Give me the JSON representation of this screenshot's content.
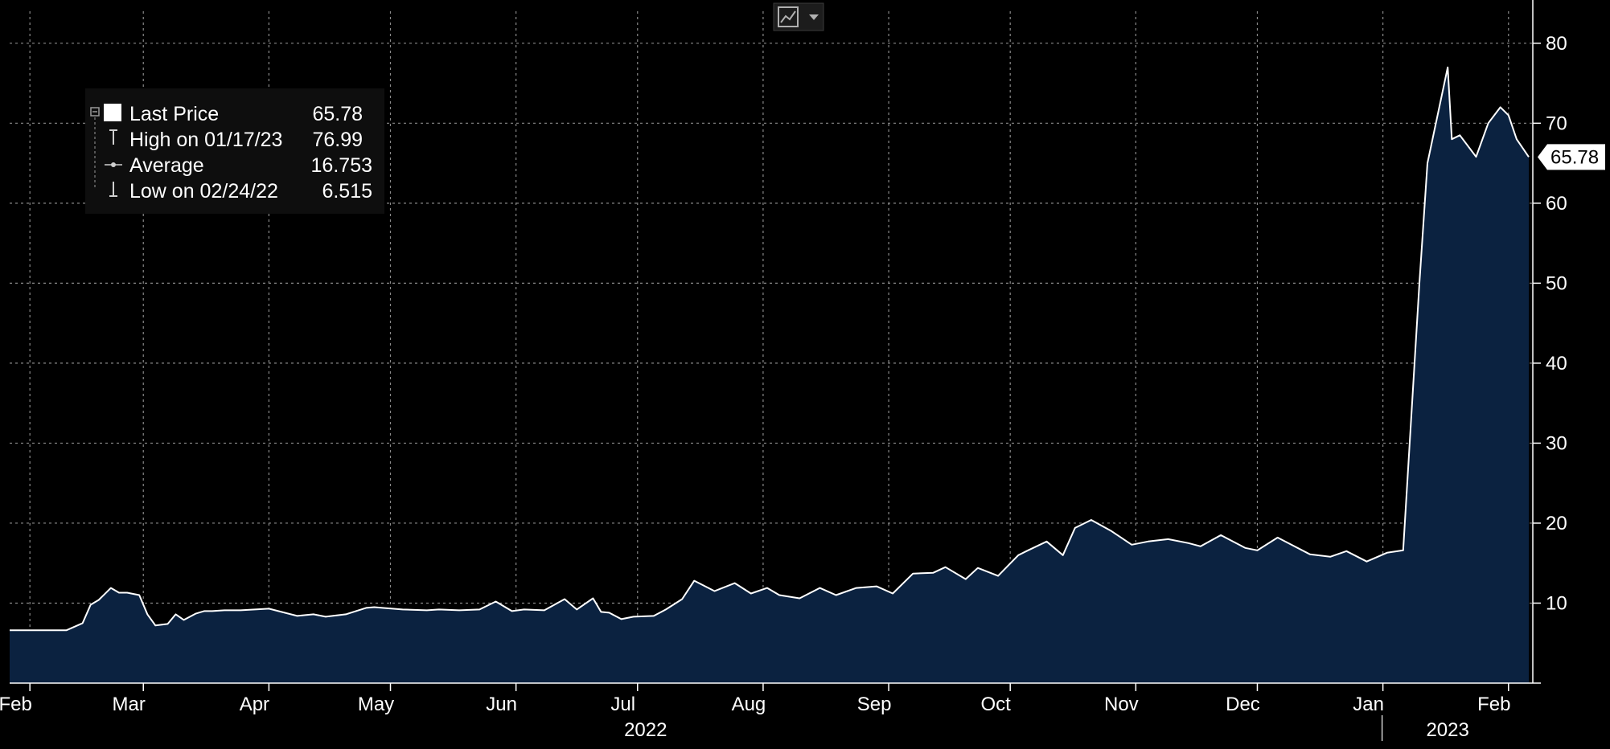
{
  "toolbar": {
    "chart_type_icon": "line-chart-icon",
    "dropdown_icon": "chevron-down-icon"
  },
  "legend": {
    "entries": [
      {
        "label": "Last Price",
        "value": "65.78",
        "icon": "filled-square-icon"
      },
      {
        "label": "High on 01/17/23",
        "value": "76.99",
        "icon": "high-marker-icon"
      },
      {
        "label": "Average",
        "value": "16.753",
        "icon": "average-marker-icon"
      },
      {
        "label": "Low on 02/24/22",
        "value": "6.515",
        "icon": "low-marker-icon"
      }
    ]
  },
  "last_price_label": "65.78",
  "colors": {
    "background": "#000000",
    "area_fill": "#0b2240",
    "line": "#ffffff",
    "grid": "#8a8a8a"
  },
  "chart_data": {
    "type": "area",
    "title": "",
    "xlabel": "",
    "ylabel": "",
    "ylim": [
      0,
      84
    ],
    "xlim": [
      "2022-01-27",
      "2023-02-07"
    ],
    "grid": true,
    "legend_position": "top-left",
    "y_ticks": [
      10,
      20,
      30,
      40,
      50,
      60,
      70,
      80
    ],
    "x_month_ticks": [
      {
        "label": "Feb",
        "date": "2022-02-01"
      },
      {
        "label": "Mar",
        "date": "2022-03-01"
      },
      {
        "label": "Apr",
        "date": "2022-04-01"
      },
      {
        "label": "May",
        "date": "2022-05-01"
      },
      {
        "label": "Jun",
        "date": "2022-06-01"
      },
      {
        "label": "Jul",
        "date": "2022-07-01"
      },
      {
        "label": "Aug",
        "date": "2022-08-01"
      },
      {
        "label": "Sep",
        "date": "2022-09-01"
      },
      {
        "label": "Oct",
        "date": "2022-10-01"
      },
      {
        "label": "Nov",
        "date": "2022-11-01"
      },
      {
        "label": "Dec",
        "date": "2022-12-01"
      },
      {
        "label": "Jan",
        "date": "2023-01-01"
      },
      {
        "label": "Feb",
        "date": "2023-02-01"
      }
    ],
    "x_year_labels": [
      {
        "label": "2022",
        "date": "2022-07-01"
      },
      {
        "label": "2023",
        "date": "2023-01-15"
      }
    ],
    "year_divider_date": "2022-12-31",
    "series": [
      {
        "name": "Last Price",
        "x": [
          "2022-01-27",
          "2022-02-03",
          "2022-02-10",
          "2022-02-14",
          "2022-02-16",
          "2022-02-18",
          "2022-02-21",
          "2022-02-23",
          "2022-02-25",
          "2022-02-28",
          "2022-03-02",
          "2022-03-04",
          "2022-03-07",
          "2022-03-09",
          "2022-03-11",
          "2022-03-14",
          "2022-03-16",
          "2022-03-18",
          "2022-03-21",
          "2022-03-25",
          "2022-04-01",
          "2022-04-08",
          "2022-04-12",
          "2022-04-15",
          "2022-04-20",
          "2022-04-25",
          "2022-04-27",
          "2022-04-29",
          "2022-05-04",
          "2022-05-10",
          "2022-05-13",
          "2022-05-18",
          "2022-05-23",
          "2022-05-27",
          "2022-05-31",
          "2022-06-03",
          "2022-06-08",
          "2022-06-13",
          "2022-06-16",
          "2022-06-20",
          "2022-06-22",
          "2022-06-24",
          "2022-06-27",
          "2022-06-30",
          "2022-07-05",
          "2022-07-08",
          "2022-07-12",
          "2022-07-15",
          "2022-07-20",
          "2022-07-25",
          "2022-07-29",
          "2022-08-02",
          "2022-08-05",
          "2022-08-10",
          "2022-08-15",
          "2022-08-19",
          "2022-08-24",
          "2022-08-29",
          "2022-09-02",
          "2022-09-07",
          "2022-09-12",
          "2022-09-15",
          "2022-09-20",
          "2022-09-23",
          "2022-09-28",
          "2022-10-03",
          "2022-10-05",
          "2022-10-10",
          "2022-10-14",
          "2022-10-17",
          "2022-10-21",
          "2022-10-26",
          "2022-10-31",
          "2022-11-04",
          "2022-11-09",
          "2022-11-14",
          "2022-11-17",
          "2022-11-22",
          "2022-11-28",
          "2022-12-01",
          "2022-12-06",
          "2022-12-09",
          "2022-12-14",
          "2022-12-19",
          "2022-12-23",
          "2022-12-28",
          "2023-01-02",
          "2023-01-06",
          "2023-01-10",
          "2023-01-12",
          "2023-01-17",
          "2023-01-18",
          "2023-01-20",
          "2023-01-24",
          "2023-01-27",
          "2023-01-30",
          "2023-02-01",
          "2023-02-03",
          "2023-02-06"
        ],
        "values": [
          6.6,
          6.6,
          6.6,
          7.5,
          9.8,
          10.4,
          11.9,
          11.3,
          11.3,
          11.0,
          8.6,
          7.2,
          7.4,
          8.6,
          7.9,
          8.7,
          9.0,
          9.0,
          9.1,
          9.1,
          9.3,
          8.4,
          8.6,
          8.3,
          8.6,
          9.4,
          9.5,
          9.4,
          9.2,
          9.1,
          9.2,
          9.1,
          9.2,
          10.2,
          9.0,
          9.2,
          9.1,
          10.5,
          9.2,
          10.6,
          8.9,
          8.8,
          8.0,
          8.3,
          8.4,
          9.2,
          10.5,
          12.8,
          11.5,
          12.5,
          11.2,
          11.9,
          11.0,
          10.6,
          11.9,
          11.0,
          11.9,
          12.1,
          11.2,
          13.7,
          13.8,
          14.5,
          13.0,
          14.4,
          13.4,
          16.0,
          16.5,
          17.7,
          16.0,
          19.4,
          20.4,
          19.0,
          17.3,
          17.7,
          18.0,
          17.5,
          17.1,
          18.5,
          16.9,
          16.6,
          18.2,
          17.4,
          16.1,
          15.8,
          16.5,
          15.2,
          16.3,
          16.6,
          50.0,
          65.0,
          76.99,
          68.0,
          68.5,
          65.8,
          70.0,
          72.0,
          71.0,
          68.0,
          65.78
        ]
      }
    ]
  }
}
